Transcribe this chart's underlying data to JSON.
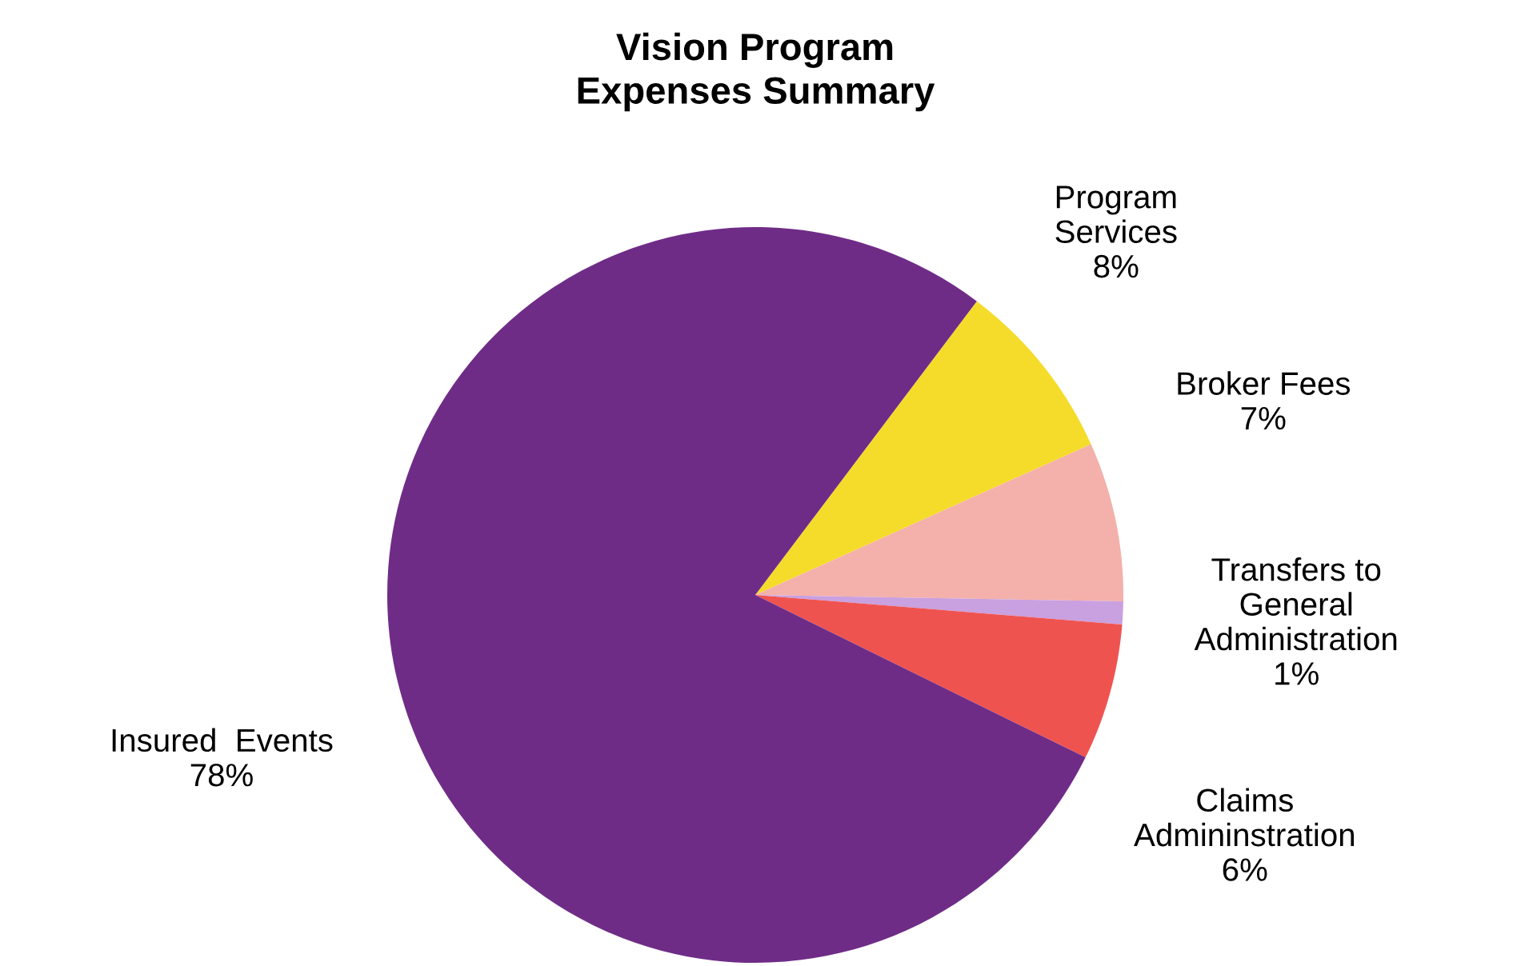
{
  "chart_data": {
    "type": "pie",
    "title": "Vision Program\nExpenses Summary",
    "categories": [
      "Program\nServices",
      "Broker Fees",
      "Transfers to\nGeneral\nAdministration",
      "Claims\nAdmininstration",
      "Insured  Events"
    ],
    "values": [
      8,
      7,
      1,
      6,
      78
    ],
    "colors": [
      "#f5dc2a",
      "#f4b0aa",
      "#c9a0e0",
      "#ef5350",
      "#6f2c87"
    ],
    "value_labels": [
      "8%",
      "7%",
      "1%",
      "6%",
      "78%"
    ]
  }
}
